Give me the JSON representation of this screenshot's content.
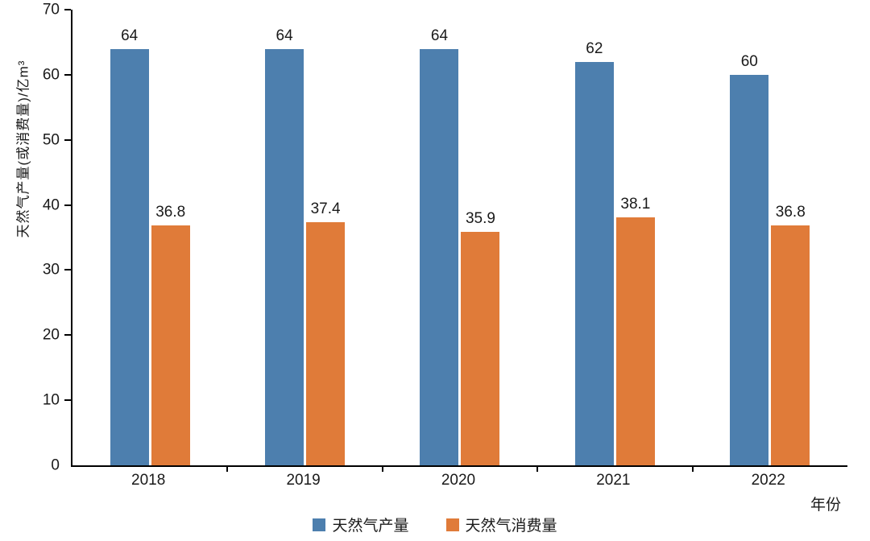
{
  "chart_data": {
    "type": "bar",
    "title": "",
    "categories": [
      "2018",
      "2019",
      "2020",
      "2021",
      "2022"
    ],
    "series": [
      {
        "key": "production",
        "name": "天然气产量",
        "color": "#4d7fae",
        "values": [
          64,
          64,
          64,
          62,
          60
        ]
      },
      {
        "key": "consumption",
        "name": "天然气消费量",
        "color": "#e07b39",
        "values": [
          36.8,
          37.4,
          35.9,
          38.1,
          36.8
        ]
      }
    ],
    "ylabel": "天然气产量(或消费量)/亿m³",
    "xlabel": "年份",
    "ylim": [
      0,
      70
    ],
    "yticks": [
      0,
      10,
      20,
      30,
      40,
      50,
      60,
      70
    ],
    "grid": false,
    "legend_position": "bottom"
  }
}
